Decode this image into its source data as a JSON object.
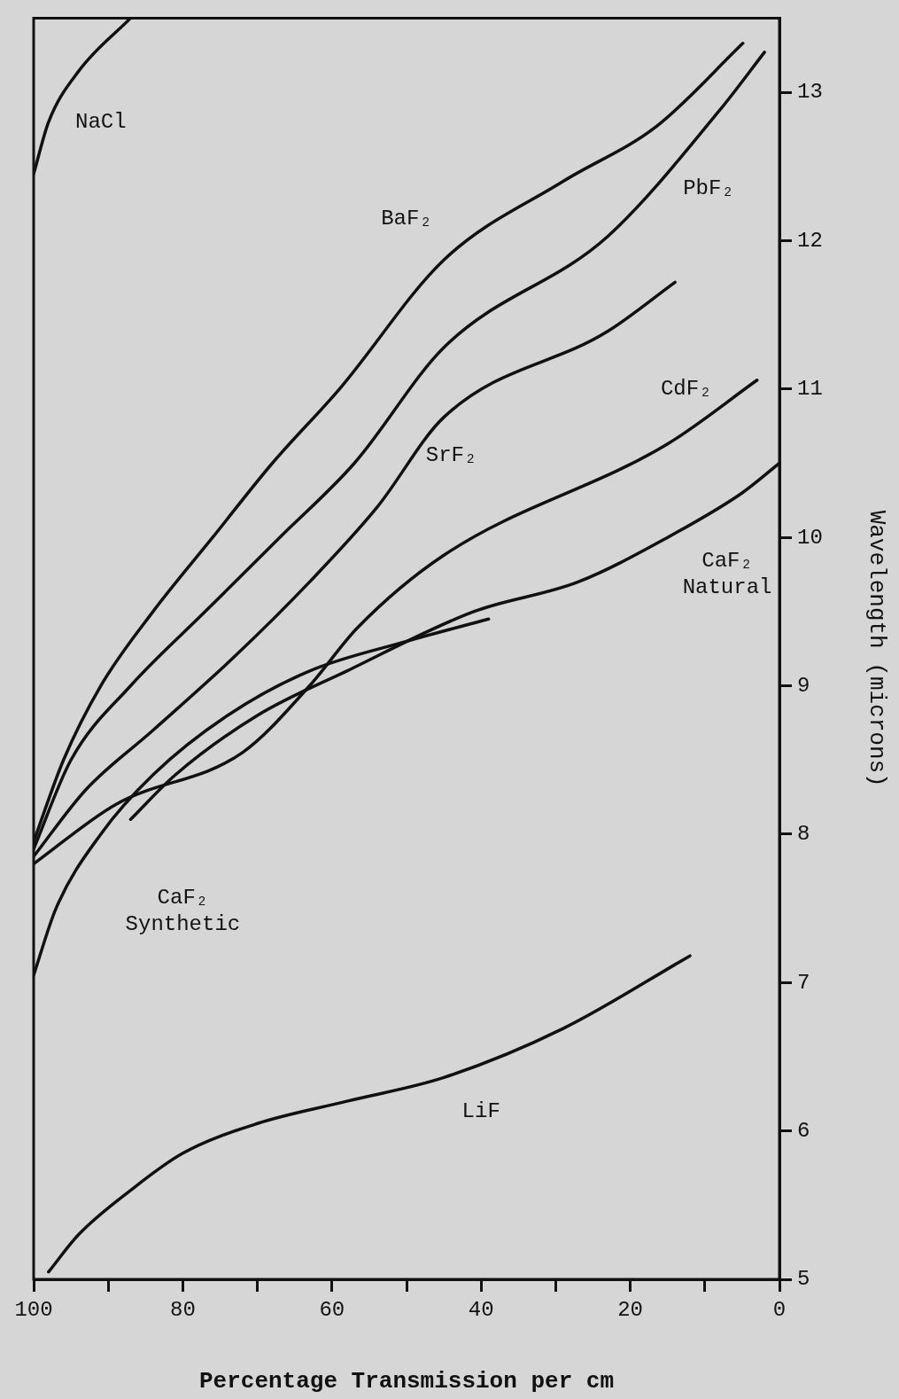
{
  "chart_data": {
    "type": "line",
    "xlabel": "Percentage Transmission per cm",
    "ylabel": "Wavelength (microns)",
    "xlim": [
      100,
      0
    ],
    "xticks": [
      0,
      {
        "value": 10,
        "label": null
      },
      20,
      {
        "value": 30,
        "label": null
      },
      40,
      {
        "value": 50,
        "label": null
      },
      60,
      {
        "value": 70,
        "label": null
      },
      80,
      {
        "value": 90,
        "label": null
      },
      100
    ],
    "ylim": [
      5,
      13.5
    ],
    "yticks": [
      5,
      6,
      7,
      8,
      9,
      10,
      11,
      12,
      13
    ],
    "marker": "none",
    "line_style": "solid",
    "series": [
      {
        "name": "LiF",
        "color": "#111111",
        "x": [
          98,
          94,
          87,
          80,
          70,
          58,
          45,
          29,
          12
        ],
        "values": [
          5.05,
          5.3,
          5.6,
          5.85,
          6.05,
          6.2,
          6.36,
          6.69,
          7.18
        ]
      },
      {
        "name": "CaF₂ Synthetic",
        "color": "#111111",
        "x": [
          100,
          97,
          91,
          84,
          74,
          63,
          50,
          39
        ],
        "values": [
          7.05,
          7.5,
          8.0,
          8.4,
          8.8,
          9.1,
          9.3,
          9.45
        ]
      },
      {
        "name": "NaCl",
        "color": "#111111",
        "x": [
          100,
          98,
          94,
          87
        ],
        "values": [
          12.45,
          12.8,
          13.14,
          13.5
        ]
      },
      {
        "name": "BaF₂",
        "color": "#111111",
        "x": [
          100,
          96,
          91,
          84,
          76,
          68,
          59,
          45,
          29,
          16.5,
          4.9
        ],
        "values": [
          7.95,
          8.5,
          9.0,
          9.5,
          10.0,
          10.5,
          11.0,
          11.87,
          12.4,
          12.77,
          13.33
        ]
      },
      {
        "name": "SrF₂",
        "color": "#111111",
        "x": [
          100,
          93,
          84,
          73,
          63,
          54,
          45,
          23,
          14
        ],
        "values": [
          7.85,
          8.3,
          8.7,
          9.2,
          9.7,
          10.2,
          10.81,
          11.39,
          11.72
        ]
      },
      {
        "name": "CdF₂",
        "color": "#111111",
        "x": [
          100,
          89,
          72,
          63,
          56.6,
          45,
          15,
          3
        ],
        "values": [
          7.8,
          8.2,
          8.55,
          9.0,
          9.39,
          9.88,
          10.63,
          11.06
        ]
      },
      {
        "name": "CaF₂ Natural",
        "color": "#111111",
        "x": [
          87,
          81,
          70,
          58,
          41,
          27,
          15,
          5,
          0
        ],
        "values": [
          8.1,
          8.4,
          8.8,
          9.1,
          9.5,
          9.7,
          10.0,
          10.3,
          10.5
        ]
      },
      {
        "name": "PbF₂",
        "color": "#111111",
        "x": [
          100,
          95,
          87,
          77,
          67,
          57,
          45,
          23,
          8,
          2
        ],
        "values": [
          7.9,
          8.5,
          9.0,
          9.5,
          10.0,
          10.5,
          11.28,
          12.03,
          12.88,
          13.27
        ]
      }
    ]
  }
}
